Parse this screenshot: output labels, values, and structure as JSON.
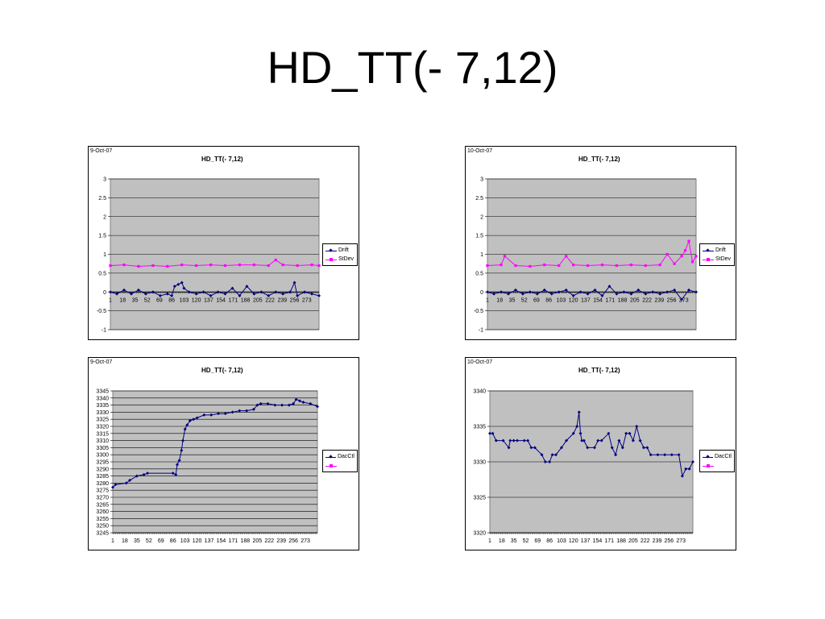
{
  "slide": {
    "title": "HD_TT(- 7,12)"
  },
  "colors": {
    "drift": "#000080",
    "stdev": "#ff00ff",
    "plot_bg": "#c0c0c0",
    "grid": "#000000"
  },
  "panels": [
    {
      "date": "9-Oct-07",
      "title": "HD_TT(- 7,12)",
      "legend": [
        "Drift",
        "StDev"
      ]
    },
    {
      "date": "10-Oct-07",
      "title": "HD_TT(- 7,12)",
      "legend": [
        "Drift",
        "StDev"
      ]
    },
    {
      "date": "9-Oct-07",
      "title": "HD_TT(- 7,12)",
      "legend": [
        "DacCtl",
        ""
      ]
    },
    {
      "date": "10-Oct-07",
      "title": "HD_TT(- 7,12)",
      "legend": [
        "DacCtl",
        ""
      ]
    }
  ],
  "chart_data": [
    {
      "type": "line",
      "title": "HD_TT(- 7,12)",
      "xlabel": "",
      "ylabel": "",
      "x_ticks": [
        "1",
        "18",
        "35",
        "52",
        "69",
        "86",
        "103",
        "120",
        "137",
        "154",
        "171",
        "188",
        "205",
        "222",
        "239",
        "256",
        "273"
      ],
      "xlim": [
        1,
        290
      ],
      "ylim": [
        -1,
        3
      ],
      "y_ticks": [
        "-1",
        "-0.5",
        "0",
        "0.5",
        "1",
        "1.5",
        "2",
        "2.5",
        "3"
      ],
      "grid": true,
      "legend_position": "right",
      "series": [
        {
          "name": "Drift",
          "color": "#000080",
          "marker": "diamond",
          "x": [
            1,
            10,
            20,
            30,
            40,
            50,
            60,
            70,
            80,
            86,
            90,
            95,
            100,
            103,
            110,
            120,
            130,
            140,
            150,
            160,
            170,
            180,
            190,
            200,
            210,
            220,
            230,
            240,
            250,
            256,
            260,
            270,
            280,
            290
          ],
          "values": [
            0,
            -0.05,
            0.05,
            -0.05,
            0.05,
            -0.05,
            0,
            -0.1,
            -0.05,
            -0.1,
            0.15,
            0.2,
            0.25,
            0.1,
            0,
            -0.05,
            0,
            -0.1,
            0,
            -0.05,
            0.1,
            -0.1,
            0.15,
            -0.05,
            0,
            -0.1,
            0,
            -0.05,
            0,
            0.25,
            -0.1,
            0,
            -0.05,
            -0.1
          ]
        },
        {
          "name": "StDev",
          "color": "#ff00ff",
          "marker": "square",
          "x": [
            1,
            20,
            40,
            60,
            80,
            100,
            120,
            140,
            160,
            180,
            200,
            220,
            230,
            240,
            260,
            280,
            290
          ],
          "values": [
            0.7,
            0.72,
            0.68,
            0.7,
            0.68,
            0.72,
            0.7,
            0.72,
            0.7,
            0.72,
            0.72,
            0.7,
            0.85,
            0.72,
            0.7,
            0.72,
            0.7
          ]
        }
      ]
    },
    {
      "type": "line",
      "title": "HD_TT(- 7,12)",
      "xlabel": "",
      "ylabel": "",
      "x_ticks": [
        "1",
        "18",
        "35",
        "52",
        "69",
        "86",
        "103",
        "120",
        "137",
        "154",
        "171",
        "188",
        "205",
        "222",
        "239",
        "256",
        "273"
      ],
      "xlim": [
        1,
        290
      ],
      "ylim": [
        -1,
        3
      ],
      "y_ticks": [
        "-1",
        "-0.5",
        "0",
        "0.5",
        "1",
        "1.5",
        "2",
        "2.5",
        "3"
      ],
      "grid": true,
      "legend_position": "right",
      "series": [
        {
          "name": "Drift",
          "color": "#000080",
          "marker": "diamond",
          "x": [
            1,
            10,
            20,
            30,
            40,
            50,
            60,
            70,
            80,
            90,
            100,
            110,
            120,
            130,
            140,
            150,
            160,
            170,
            180,
            190,
            200,
            210,
            220,
            230,
            240,
            250,
            260,
            270,
            280,
            290
          ],
          "values": [
            0,
            -0.05,
            0,
            -0.05,
            0.05,
            -0.05,
            0,
            -0.05,
            0.05,
            -0.05,
            0,
            0.05,
            -0.1,
            0,
            -0.05,
            0.05,
            -0.1,
            0.15,
            -0.05,
            0,
            -0.05,
            0.05,
            -0.05,
            0,
            -0.05,
            0,
            0.05,
            -0.2,
            0.05,
            0
          ]
        },
        {
          "name": "StDev",
          "color": "#ff00ff",
          "marker": "square",
          "x": [
            1,
            20,
            25,
            40,
            60,
            80,
            100,
            110,
            120,
            140,
            160,
            180,
            200,
            220,
            240,
            250,
            260,
            270,
            275,
            280,
            285,
            290
          ],
          "values": [
            0.7,
            0.72,
            0.95,
            0.7,
            0.68,
            0.72,
            0.7,
            0.95,
            0.72,
            0.7,
            0.72,
            0.7,
            0.72,
            0.7,
            0.72,
            1.0,
            0.75,
            0.95,
            1.1,
            1.35,
            0.8,
            0.95
          ]
        }
      ]
    },
    {
      "type": "line",
      "title": "HD_TT(- 7,12)",
      "xlabel": "",
      "ylabel": "",
      "x_ticks": [
        "1",
        "18",
        "35",
        "52",
        "69",
        "86",
        "103",
        "120",
        "137",
        "154",
        "171",
        "188",
        "205",
        "222",
        "239",
        "256",
        "273"
      ],
      "xlim": [
        1,
        290
      ],
      "ylim": [
        3245,
        3345
      ],
      "y_ticks": [
        "3245",
        "3250",
        "3255",
        "3260",
        "3265",
        "3270",
        "3275",
        "3280",
        "3285",
        "3290",
        "3295",
        "3300",
        "3305",
        "3310",
        "3315",
        "3320",
        "3325",
        "3330",
        "3335",
        "3340",
        "3345"
      ],
      "grid": true,
      "legend_position": "right",
      "series": [
        {
          "name": "DacCtl",
          "color": "#000080",
          "marker": "diamond",
          "x": [
            1,
            5,
            20,
            25,
            35,
            45,
            50,
            86,
            90,
            92,
            95,
            98,
            100,
            103,
            106,
            110,
            115,
            120,
            130,
            140,
            150,
            160,
            170,
            180,
            190,
            200,
            205,
            210,
            220,
            230,
            240,
            250,
            256,
            260,
            265,
            270,
            280,
            290
          ],
          "values": [
            3277,
            3279,
            3280,
            3282,
            3285,
            3286,
            3287,
            3287,
            3286,
            3293,
            3296,
            3303,
            3310,
            3318,
            3321,
            3324,
            3325,
            3326,
            3328,
            3328,
            3329,
            3329,
            3330,
            3331,
            3331,
            3332,
            3335,
            3336,
            3336,
            3335,
            3335,
            3335,
            3336,
            3339,
            3338,
            3337,
            3336,
            3334
          ]
        }
      ]
    },
    {
      "type": "line",
      "title": "HD_TT(- 7,12)",
      "xlabel": "",
      "ylabel": "",
      "x_ticks": [
        "1",
        "18",
        "35",
        "52",
        "69",
        "86",
        "103",
        "120",
        "137",
        "154",
        "171",
        "188",
        "205",
        "222",
        "239",
        "256",
        "273"
      ],
      "xlim": [
        1,
        290
      ],
      "ylim": [
        3320,
        3340
      ],
      "y_ticks": [
        "3320",
        "3325",
        "3330",
        "3335",
        "3340"
      ],
      "grid": true,
      "legend_position": "right",
      "series": [
        {
          "name": "DacCtl",
          "color": "#000080",
          "marker": "diamond",
          "x": [
            1,
            5,
            10,
            20,
            28,
            30,
            35,
            40,
            50,
            55,
            60,
            65,
            75,
            80,
            86,
            90,
            95,
            103,
            110,
            120,
            125,
            128,
            130,
            132,
            135,
            140,
            150,
            155,
            160,
            170,
            175,
            180,
            185,
            190,
            195,
            200,
            205,
            210,
            215,
            220,
            225,
            230,
            240,
            250,
            260,
            270,
            275,
            280,
            285,
            290
          ],
          "values": [
            3334,
            3334,
            3333,
            3333,
            3332,
            3333,
            3333,
            3333,
            3333,
            3333,
            3332,
            3332,
            3331,
            3330,
            3330,
            3331,
            3331,
            3332,
            3333,
            3334,
            3335,
            3337,
            3334,
            3333,
            3333,
            3332,
            3332,
            3333,
            3333,
            3334,
            3332,
            3331,
            3333,
            3332,
            3334,
            3334,
            3333,
            3335,
            3333,
            3332,
            3332,
            3331,
            3331,
            3331,
            3331,
            3331,
            3328,
            3329,
            3329,
            3330
          ]
        }
      ]
    }
  ]
}
